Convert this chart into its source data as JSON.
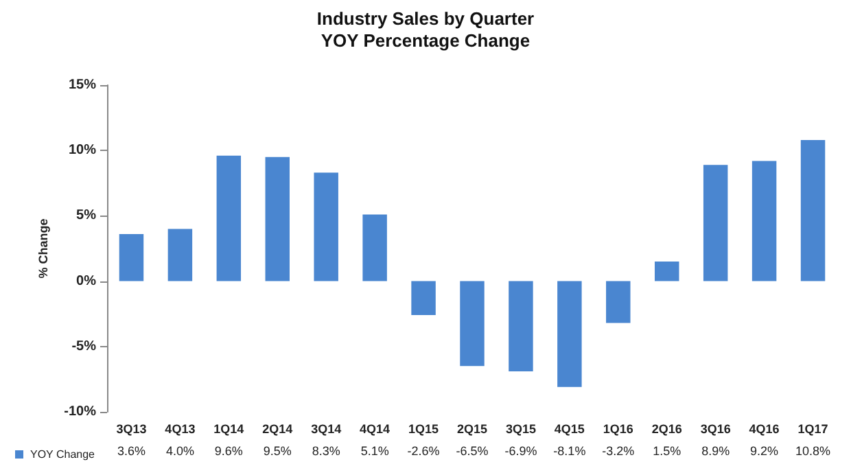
{
  "chart_data": {
    "type": "bar",
    "title": "Industry Sales by Quarter",
    "subtitle": "YOY Percentage Change",
    "ylabel": "% Change",
    "categories": [
      "3Q13",
      "4Q13",
      "1Q14",
      "2Q14",
      "3Q14",
      "4Q14",
      "1Q15",
      "2Q15",
      "3Q15",
      "4Q15",
      "1Q16",
      "2Q16",
      "3Q16",
      "4Q16",
      "1Q17"
    ],
    "series": [
      {
        "name": "YOY Change",
        "color": "#4a86d0",
        "values": [
          3.6,
          4.0,
          9.6,
          9.5,
          8.3,
          5.1,
          -2.6,
          -6.5,
          -6.9,
          -8.1,
          -3.2,
          1.5,
          8.9,
          9.2,
          10.8
        ],
        "value_labels": [
          "3.6%",
          "4.0%",
          "9.6%",
          "9.5%",
          "8.3%",
          "5.1%",
          "-2.6%",
          "-6.5%",
          "-6.9%",
          "-8.1%",
          "-3.2%",
          "1.5%",
          "8.9%",
          "9.2%",
          "10.8%"
        ]
      }
    ],
    "ylim": [
      -10,
      15
    ],
    "yticks": [
      {
        "value": -10,
        "label": "-10%"
      },
      {
        "value": -5,
        "label": "-5%"
      },
      {
        "value": 0,
        "label": "0%"
      },
      {
        "value": 5,
        "label": "5%"
      },
      {
        "value": 10,
        "label": "10%"
      },
      {
        "value": 15,
        "label": "15%"
      }
    ],
    "grid": false,
    "legend": "bottom left"
  }
}
